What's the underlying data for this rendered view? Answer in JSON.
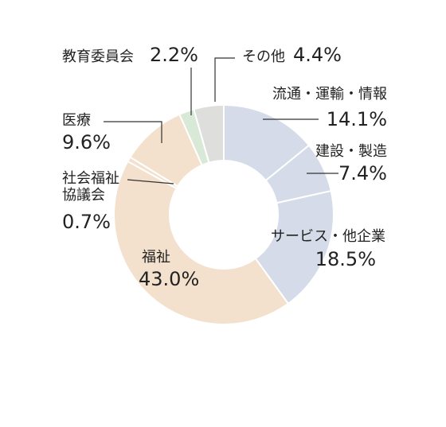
{
  "chart_data": {
    "type": "donut",
    "categories": [
      "流通・運輸・情報",
      "建設・製造",
      "サービス・他企業",
      "福祉",
      "社会福祉協議会",
      "医療",
      "教育委員会",
      "その他"
    ],
    "values": [
      14.1,
      7.4,
      18.5,
      43.0,
      0.7,
      9.6,
      2.2,
      4.4
    ],
    "value_labels": [
      "14.1%",
      "7.4%",
      "18.5%",
      "43.0%",
      "0.7%",
      "9.6%",
      "2.2%",
      "4.4%"
    ],
    "colors": [
      "#d5dbe8",
      "#d5dbe8",
      "#d5dbe8",
      "#f3e1cd",
      "#f3e1cd",
      "#f3e1cd",
      "#d8e9d7",
      "#dededd"
    ]
  }
}
